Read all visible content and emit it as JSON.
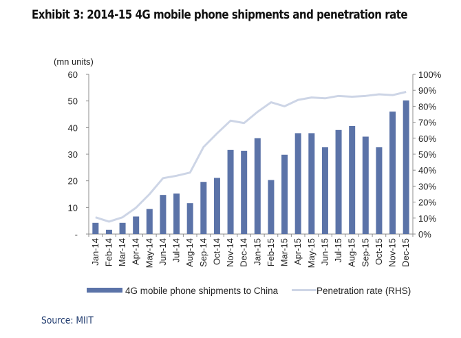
{
  "title": "Exhibit 3: 2014-15 4G mobile phone shipments and penetration rate",
  "source": "Source: MIIT",
  "colors": {
    "bar": "#5b73a8",
    "line": "#cdd5e6",
    "axis": "#8c8c8c"
  },
  "chart_data": {
    "type": "bar",
    "title": "Exhibit 3: 2014-15 4G mobile phone shipments and penetration rate",
    "xlabel": "",
    "ylabel": "(mn units)",
    "y2label": "",
    "ylim": [
      0,
      60
    ],
    "y2lim": [
      0,
      100
    ],
    "yticks": [
      "-",
      "10",
      "20",
      "30",
      "40",
      "50",
      "60"
    ],
    "y2ticks": [
      "0%",
      "10%",
      "20%",
      "30%",
      "40%",
      "50%",
      "60%",
      "70%",
      "80%",
      "90%",
      "100%"
    ],
    "grid": false,
    "legend_position": "bottom",
    "categories": [
      "Jan-14",
      "Feb-14",
      "Mar-14",
      "Apr-14",
      "May-14",
      "Jun-14",
      "Jul-14",
      "Aug-14",
      "Sep-14",
      "Oct-14",
      "Nov-14",
      "Dec-14",
      "Jan-15",
      "Feb-15",
      "Mar-15",
      "Apr-15",
      "May-15",
      "Jun-15",
      "Jul-15",
      "Aug-15",
      "Sep-15",
      "Oct-15",
      "Nov-15",
      "Dec-15"
    ],
    "series": [
      {
        "name": "4G mobile phone shipments to China",
        "type": "bar",
        "axis": "left",
        "values": [
          4.2,
          1.6,
          4.2,
          6.6,
          9.4,
          14.7,
          15.2,
          11.6,
          19.6,
          21.1,
          31.6,
          31.3,
          36.0,
          20.3,
          29.8,
          37.9,
          37.9,
          32.6,
          39.1,
          40.6,
          36.6,
          32.6,
          46.0,
          50.2
        ]
      },
      {
        "name": "Penetration rate (RHS)",
        "type": "line",
        "axis": "right",
        "values": [
          10.5,
          7.8,
          10.5,
          16.5,
          25.0,
          35.0,
          36.5,
          38.5,
          54.5,
          63.0,
          71.0,
          69.5,
          76.5,
          82.5,
          80.0,
          84.0,
          85.5,
          85.0,
          86.5,
          86.0,
          86.5,
          87.5,
          87.0,
          89.0
        ]
      }
    ]
  }
}
